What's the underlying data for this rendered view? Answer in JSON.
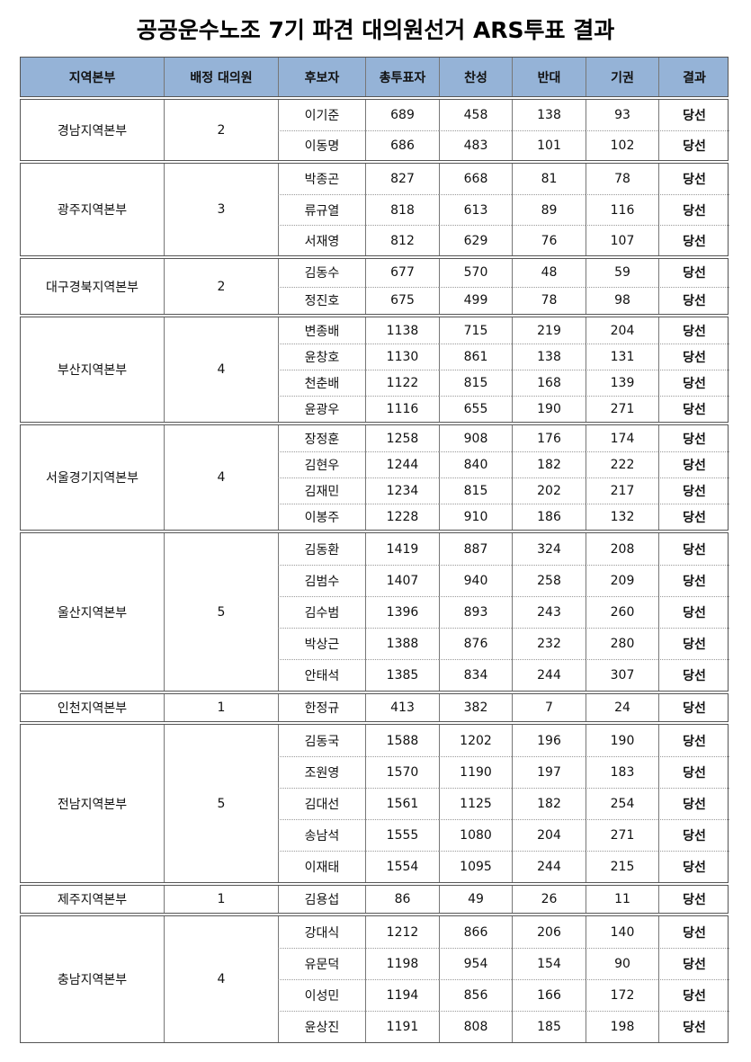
{
  "title": "공공운수노조 7기 파견 대의원선거 ARS투표 결과",
  "table": {
    "headers": [
      "지역본부",
      "배정 대의원",
      "후보자",
      "총투표자",
      "찬성",
      "반대",
      "기권",
      "결과"
    ],
    "groups": [
      {
        "region": "경남지역본부",
        "seats": 2,
        "candidates": [
          {
            "name": "이기준",
            "total": 689,
            "yes": 458,
            "no": 138,
            "abstain": 93,
            "result": "당선"
          },
          {
            "name": "이동명",
            "total": 686,
            "yes": 483,
            "no": 101,
            "abstain": 102,
            "result": "당선"
          }
        ]
      },
      {
        "region": "광주지역본부",
        "seats": 3,
        "candidates": [
          {
            "name": "박종곤",
            "total": 827,
            "yes": 668,
            "no": 81,
            "abstain": 78,
            "result": "당선"
          },
          {
            "name": "류규열",
            "total": 818,
            "yes": 613,
            "no": 89,
            "abstain": 116,
            "result": "당선"
          },
          {
            "name": "서재영",
            "total": 812,
            "yes": 629,
            "no": 76,
            "abstain": 107,
            "result": "당선"
          }
        ]
      },
      {
        "region": "대구경북지역본부",
        "seats": 2,
        "candidates": [
          {
            "name": "김동수",
            "total": 677,
            "yes": 570,
            "no": 48,
            "abstain": 59,
            "result": "당선"
          },
          {
            "name": "정진호",
            "total": 675,
            "yes": 499,
            "no": 78,
            "abstain": 98,
            "result": "당선"
          }
        ]
      },
      {
        "region": "부산지역본부",
        "seats": 4,
        "candidates": [
          {
            "name": "변종배",
            "total": 1138,
            "yes": 715,
            "no": 219,
            "abstain": 204,
            "result": "당선"
          },
          {
            "name": "윤창호",
            "total": 1130,
            "yes": 861,
            "no": 138,
            "abstain": 131,
            "result": "당선"
          },
          {
            "name": "천춘배",
            "total": 1122,
            "yes": 815,
            "no": 168,
            "abstain": 139,
            "result": "당선"
          },
          {
            "name": "윤광우",
            "total": 1116,
            "yes": 655,
            "no": 190,
            "abstain": 271,
            "result": "당선"
          }
        ]
      },
      {
        "region": "서울경기지역본부",
        "seats": 4,
        "candidates": [
          {
            "name": "장정훈",
            "total": 1258,
            "yes": 908,
            "no": 176,
            "abstain": 174,
            "result": "당선"
          },
          {
            "name": "김현우",
            "total": 1244,
            "yes": 840,
            "no": 182,
            "abstain": 222,
            "result": "당선"
          },
          {
            "name": "김재민",
            "total": 1234,
            "yes": 815,
            "no": 202,
            "abstain": 217,
            "result": "당선"
          },
          {
            "name": "이봉주",
            "total": 1228,
            "yes": 910,
            "no": 186,
            "abstain": 132,
            "result": "당선"
          }
        ]
      },
      {
        "region": "울산지역본부",
        "seats": 5,
        "candidates": [
          {
            "name": "김동환",
            "total": 1419,
            "yes": 887,
            "no": 324,
            "abstain": 208,
            "result": "당선"
          },
          {
            "name": "김범수",
            "total": 1407,
            "yes": 940,
            "no": 258,
            "abstain": 209,
            "result": "당선"
          },
          {
            "name": "김수범",
            "total": 1396,
            "yes": 893,
            "no": 243,
            "abstain": 260,
            "result": "당선"
          },
          {
            "name": "박상근",
            "total": 1388,
            "yes": 876,
            "no": 232,
            "abstain": 280,
            "result": "당선"
          },
          {
            "name": "안태석",
            "total": 1385,
            "yes": 834,
            "no": 244,
            "abstain": 307,
            "result": "당선"
          }
        ]
      },
      {
        "region": "인천지역본부",
        "seats": 1,
        "candidates": [
          {
            "name": "한정규",
            "total": 413,
            "yes": 382,
            "no": 7,
            "abstain": 24,
            "result": "당선"
          }
        ]
      },
      {
        "region": "전남지역본부",
        "seats": 5,
        "candidates": [
          {
            "name": "김동국",
            "total": 1588,
            "yes": 1202,
            "no": 196,
            "abstain": 190,
            "result": "당선"
          },
          {
            "name": "조원영",
            "total": 1570,
            "yes": 1190,
            "no": 197,
            "abstain": 183,
            "result": "당선"
          },
          {
            "name": "김대선",
            "total": 1561,
            "yes": 1125,
            "no": 182,
            "abstain": 254,
            "result": "당선"
          },
          {
            "name": "송남석",
            "total": 1555,
            "yes": 1080,
            "no": 204,
            "abstain": 271,
            "result": "당선"
          },
          {
            "name": "이재태",
            "total": 1554,
            "yes": 1095,
            "no": 244,
            "abstain": 215,
            "result": "당선"
          }
        ]
      },
      {
        "region": "제주지역본부",
        "seats": 1,
        "candidates": [
          {
            "name": "김용섭",
            "total": 86,
            "yes": 49,
            "no": 26,
            "abstain": 11,
            "result": "당선"
          }
        ]
      },
      {
        "region": "충남지역본부",
        "seats": 4,
        "candidates": [
          {
            "name": "강대식",
            "total": 1212,
            "yes": 866,
            "no": 206,
            "abstain": 140,
            "result": "당선"
          },
          {
            "name": "유문덕",
            "total": 1198,
            "yes": 954,
            "no": 154,
            "abstain": 90,
            "result": "당선"
          },
          {
            "name": "이성민",
            "total": 1194,
            "yes": 856,
            "no": 166,
            "abstain": 172,
            "result": "당선"
          },
          {
            "name": "윤상진",
            "total": 1191,
            "yes": 808,
            "no": 185,
            "abstain": 198,
            "result": "당선"
          }
        ]
      }
    ]
  }
}
